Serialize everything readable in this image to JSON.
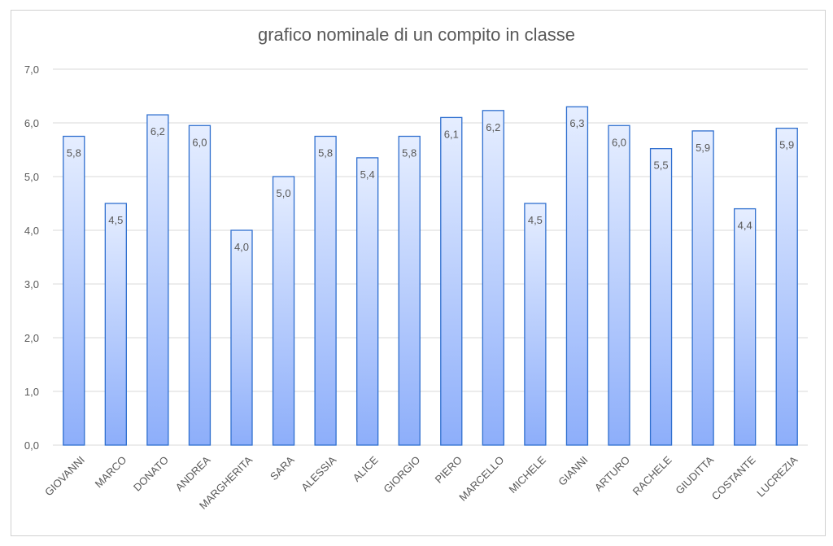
{
  "chart_data": {
    "type": "bar",
    "title": "grafico nominale di un compito in classe",
    "xlabel": "",
    "ylabel": "",
    "ylim": [
      0,
      7
    ],
    "yticks": [
      "0,0",
      "1,0",
      "2,0",
      "3,0",
      "4,0",
      "5,0",
      "6,0",
      "7,0"
    ],
    "grid": true,
    "categories": [
      "GIOVANNI",
      "MARCO",
      "DONATO",
      "ANDREA",
      "MARGHERITA",
      "SARA",
      "ALESSIA",
      "ALICE",
      "GIORGIO",
      "PIERO",
      "MARCELLO",
      "MICHELE",
      "GIANNI",
      "ARTURO",
      "RACHELE",
      "GIUDITTA",
      "COSTANTE",
      "LUCREZIA"
    ],
    "values": [
      5.75,
      4.5,
      6.15,
      5.95,
      4.0,
      5.0,
      5.75,
      5.35,
      5.75,
      6.1,
      6.23,
      4.5,
      6.3,
      5.95,
      5.52,
      5.85,
      4.4,
      5.9
    ],
    "data_labels": [
      "5,8",
      "4,5",
      "6,2",
      "6,0",
      "4,0",
      "5,0",
      "5,8",
      "5,4",
      "5,8",
      "6,1",
      "6,2",
      "4,5",
      "6,3",
      "6,0",
      "5,5",
      "5,9",
      "4,4",
      "5,9"
    ],
    "colors": {
      "bar_top": "#e6eeff",
      "bar_bottom": "#8daefa",
      "bar_border": "#2f6fcf",
      "grid": "#d9d9d9",
      "text": "#595959"
    }
  }
}
